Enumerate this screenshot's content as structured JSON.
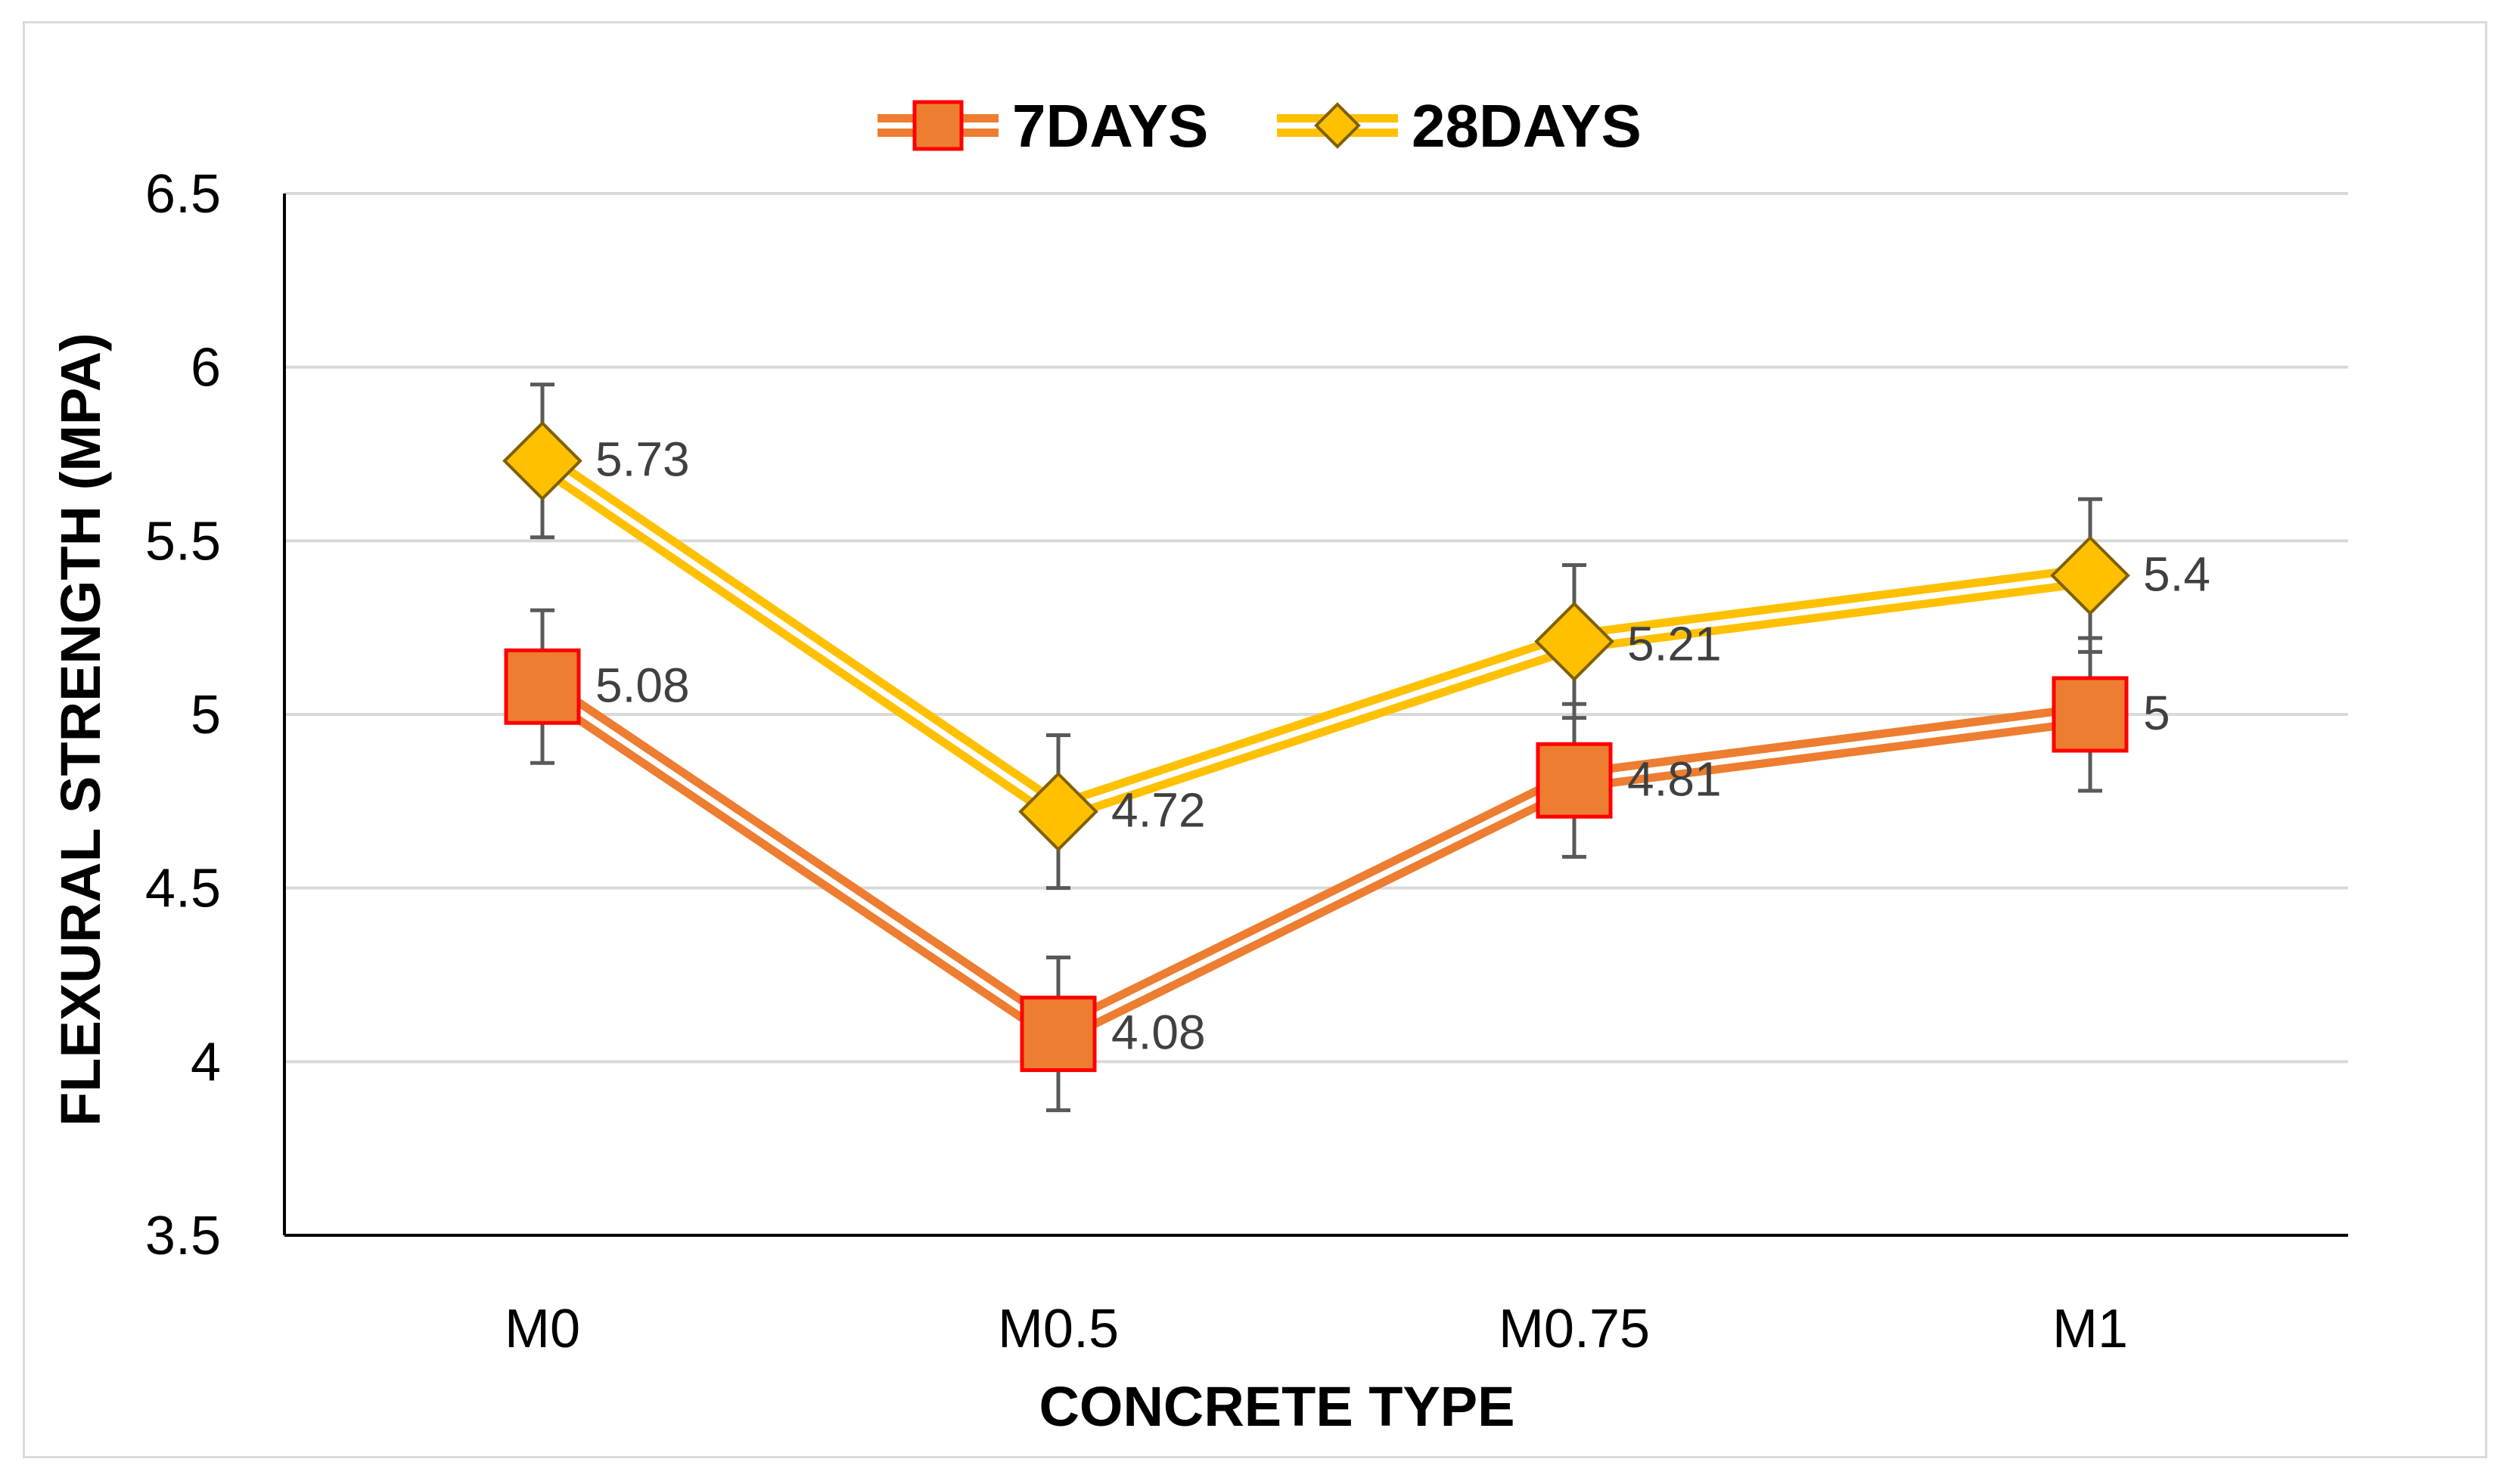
{
  "chart_data": {
    "type": "line",
    "title": "",
    "xlabel": "CONCRETE TYPE",
    "ylabel": "FLEXURAL STRENGTH (MPA)",
    "categories": [
      "M0",
      "M0.5",
      "M0.75",
      "M1"
    ],
    "ylim": [
      3.5,
      6.5
    ],
    "yticks": [
      3.5,
      4,
      4.5,
      5,
      5.5,
      6,
      6.5
    ],
    "ytick_labels": [
      "3.5",
      "4",
      "4.5",
      "5",
      "5.5",
      "6",
      "6.5"
    ],
    "grid": true,
    "legend_position": "top-center",
    "error_bar": 0.22,
    "series": [
      {
        "name": "7DAYS",
        "values": [
          5.08,
          4.08,
          4.81,
          5.0
        ],
        "labels": [
          "5.08",
          "4.08",
          "4.81",
          "5"
        ],
        "marker": "square",
        "line_color": "#ed7d31",
        "marker_fill": "#ed7d31",
        "marker_edge": "#ff0000"
      },
      {
        "name": "28DAYS",
        "values": [
          5.73,
          4.72,
          5.21,
          5.4
        ],
        "labels": [
          "5.73",
          "4.72",
          "5.21",
          "5.4"
        ],
        "marker": "diamond",
        "line_color": "#ffc000",
        "marker_fill": "#ffc000",
        "marker_edge": "#7f6000"
      }
    ]
  }
}
